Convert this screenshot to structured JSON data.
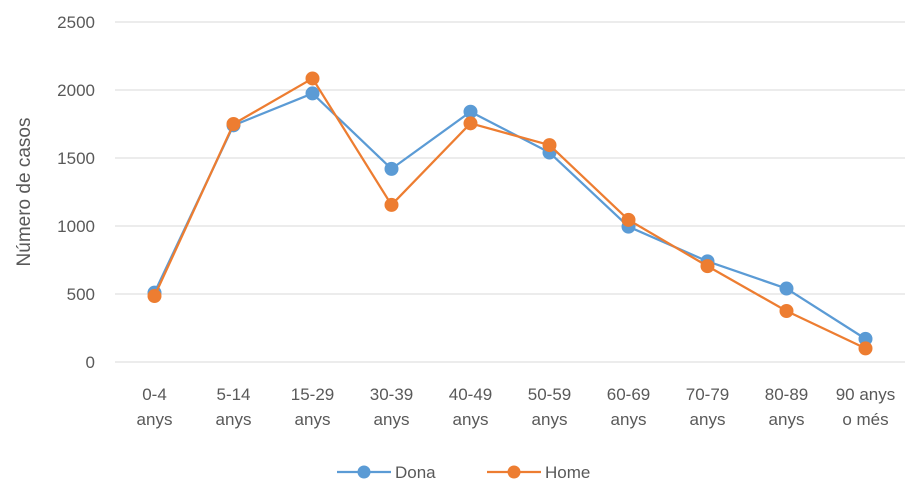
{
  "chart_data": {
    "type": "line",
    "title": "",
    "xlabel": "",
    "ylabel": "Número de casos",
    "ylim": [
      0,
      2500
    ],
    "yticks": [
      0,
      500,
      1000,
      1500,
      2000,
      2500
    ],
    "grid": true,
    "legend_position": "bottom",
    "categories": [
      [
        "0-4",
        "anys"
      ],
      [
        "5-14",
        "anys"
      ],
      [
        "15-29",
        "anys"
      ],
      [
        "30-39",
        "anys"
      ],
      [
        "40-49",
        "anys"
      ],
      [
        "50-59",
        "anys"
      ],
      [
        "60-69",
        "anys"
      ],
      [
        "70-79",
        "anys"
      ],
      [
        "80-89",
        "anys"
      ],
      [
        "90 anys",
        "o més"
      ]
    ],
    "series": [
      {
        "name": "Dona",
        "color": "#5b9bd5",
        "values": [
          510,
          1740,
          1975,
          1420,
          1840,
          1540,
          995,
          740,
          540,
          170
        ]
      },
      {
        "name": "Home",
        "color": "#ed7d31",
        "values": [
          485,
          1750,
          2085,
          1155,
          1755,
          1595,
          1045,
          705,
          375,
          100
        ]
      }
    ]
  }
}
